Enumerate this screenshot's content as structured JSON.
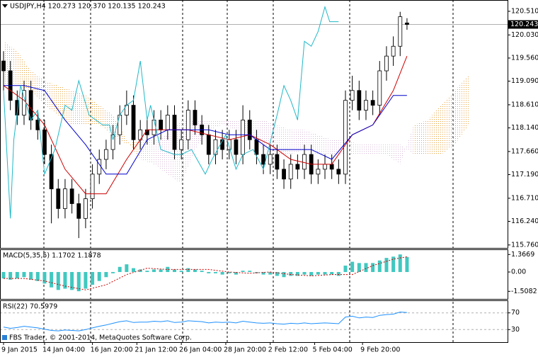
{
  "chart_data": [
    {
      "type": "candlestick",
      "title": "USDJPY,H4  120.273 120.370 120.135 120.243",
      "open": [
        119.5,
        119.3,
        118.7,
        118.4,
        118.9,
        118.3,
        118.1,
        117.6,
        116.9,
        116.5,
        116.9,
        116.6,
        116.3,
        116.7,
        117.2,
        117.5,
        117.7,
        118.0,
        118.4,
        118.6,
        117.9,
        118.1,
        118.0,
        118.3,
        118.1,
        118.4,
        117.7,
        117.9,
        118.5,
        118.2,
        118.0,
        117.6,
        117.9,
        117.7,
        117.9,
        117.6,
        118.3,
        117.9,
        117.6,
        117.4,
        117.6,
        117.3,
        117.1,
        117.4,
        117.3,
        117.6,
        117.2,
        117.3,
        117.4,
        117.3,
        117.2,
        118.7,
        118.9,
        118.5,
        118.7,
        118.6,
        119.3,
        119.6,
        119.8,
        120.273
      ],
      "high": [
        119.7,
        119.5,
        118.9,
        119.1,
        119.1,
        118.5,
        118.3,
        117.8,
        117.1,
        117.1,
        117.1,
        116.8,
        116.9,
        117.4,
        117.7,
        117.9,
        118.2,
        118.6,
        118.9,
        118.8,
        118.3,
        118.3,
        118.5,
        118.5,
        118.6,
        118.6,
        118.1,
        118.7,
        118.7,
        118.4,
        118.2,
        118.1,
        118.1,
        118.1,
        118.1,
        118.6,
        118.5,
        118.1,
        117.8,
        117.8,
        117.8,
        117.5,
        117.6,
        117.6,
        117.8,
        117.8,
        117.5,
        117.6,
        117.6,
        117.5,
        118.9,
        119.2,
        119.1,
        118.9,
        118.9,
        119.5,
        119.8,
        120.0,
        120.5,
        120.37
      ],
      "low": [
        118.9,
        118.5,
        118.2,
        118.2,
        118.1,
        117.9,
        117.4,
        116.2,
        116.3,
        116.3,
        116.4,
        115.9,
        116.1,
        116.5,
        117.0,
        117.3,
        117.5,
        117.8,
        118.2,
        117.7,
        117.7,
        117.8,
        117.8,
        117.9,
        117.9,
        117.5,
        117.5,
        117.7,
        118.0,
        117.8,
        117.4,
        117.4,
        117.5,
        117.5,
        117.4,
        117.4,
        117.7,
        117.4,
        117.2,
        117.2,
        117.1,
        116.9,
        116.9,
        117.1,
        117.1,
        117.0,
        117.0,
        117.1,
        117.1,
        117.0,
        117.0,
        118.5,
        118.3,
        118.3,
        118.4,
        118.4,
        119.1,
        119.4,
        119.6,
        120.135
      ],
      "close": [
        119.3,
        118.7,
        118.4,
        118.9,
        118.3,
        118.1,
        117.6,
        116.9,
        116.5,
        116.9,
        116.6,
        116.3,
        116.7,
        117.2,
        117.5,
        117.7,
        118.0,
        118.4,
        118.6,
        117.9,
        118.1,
        118.0,
        118.3,
        118.1,
        118.4,
        117.7,
        117.9,
        118.5,
        118.2,
        118.0,
        117.6,
        117.9,
        117.7,
        117.9,
        117.6,
        118.3,
        117.9,
        117.6,
        117.4,
        117.6,
        117.3,
        117.1,
        117.4,
        117.3,
        117.6,
        117.2,
        117.3,
        117.4,
        117.3,
        117.2,
        118.7,
        118.9,
        118.5,
        118.7,
        118.6,
        119.3,
        119.6,
        119.8,
        120.4,
        120.243
      ],
      "bull_color": "#ffffff",
      "bear_color": "#000000",
      "last_price": 120.243,
      "lines": [
        {
          "color": "#cc0000",
          "x": [
            0,
            3,
            6,
            9,
            12,
            15,
            18,
            21,
            24,
            27,
            30,
            33,
            36,
            39,
            42,
            45,
            48,
            51,
            54,
            57,
            59
          ],
          "values": [
            119.0,
            118.7,
            118.2,
            117.3,
            116.8,
            116.8,
            117.5,
            118.1,
            118.1,
            118.1,
            118.0,
            117.9,
            118.0,
            117.8,
            117.5,
            117.4,
            117.4,
            118.0,
            118.2,
            118.9,
            119.6
          ]
        },
        {
          "color": "#0000cc",
          "x": [
            0,
            3,
            6,
            9,
            12,
            15,
            18,
            21,
            24,
            27,
            30,
            33,
            36,
            39,
            42,
            45,
            48,
            51,
            54,
            57,
            59
          ],
          "values": [
            119.0,
            119.0,
            118.9,
            118.3,
            117.8,
            117.2,
            117.2,
            117.9,
            118.1,
            118.1,
            118.1,
            118.0,
            118.0,
            117.7,
            117.7,
            117.7,
            117.5,
            118.0,
            118.2,
            118.8,
            118.8
          ]
        },
        {
          "color": "#20b8c8",
          "x": [
            0,
            1,
            1.5,
            2.5,
            4,
            5,
            6,
            7.5,
            9,
            10,
            11,
            12.5,
            14.5,
            15.5,
            16,
            17,
            18,
            19,
            20,
            21,
            21.5,
            23,
            25,
            26,
            27.5,
            29.5,
            30.5,
            32.5,
            34,
            35,
            36.5,
            38,
            40,
            41,
            42,
            43,
            44,
            45,
            46,
            47,
            47.7,
            49
          ],
          "values": [
            118.9,
            116.3,
            117.9,
            119.0,
            118.3,
            118.5,
            117.2,
            117.7,
            118.6,
            118.5,
            119.1,
            118.4,
            118.2,
            118.2,
            117.9,
            118.4,
            118.6,
            118.7,
            119.5,
            118.3,
            118.6,
            117.7,
            117.6,
            117.6,
            117.7,
            117.2,
            117.5,
            118.0,
            117.3,
            117.6,
            117.7,
            117.3,
            118.4,
            119.0,
            118.7,
            118.3,
            119.9,
            119.8,
            120.1,
            120.6,
            120.3,
            120.3
          ]
        }
      ],
      "cloud": {
        "up_color": "#e8a040",
        "down_color": "#d8b8d8",
        "x": [
          0,
          2,
          4,
          6,
          8,
          10,
          12,
          14,
          16,
          18,
          20,
          22,
          24,
          26,
          28,
          30,
          32,
          34,
          36,
          38,
          40,
          42,
          44,
          46,
          48,
          50,
          52,
          54,
          56,
          58,
          60,
          62,
          64,
          66,
          68
        ],
        "span_a": [
          119.9,
          119.7,
          119.3,
          119.1,
          119.0,
          118.9,
          118.8,
          118.6,
          118.4,
          117.9,
          117.5,
          117.4,
          117.2,
          117.0,
          117.7,
          118.1,
          118.2,
          118.1,
          118.0,
          117.7,
          117.6,
          117.6,
          117.7,
          117.6,
          117.6,
          117.6,
          117.6,
          117.6,
          117.6,
          117.4,
          118.2,
          118.3,
          118.6,
          118.9,
          119.2
        ],
        "span_b": [
          119.0,
          119.0,
          118.9,
          118.6,
          118.4,
          118.2,
          118.2,
          118.2,
          118.0,
          117.8,
          117.9,
          117.9,
          118.0,
          118.3,
          118.3,
          118.3,
          118.3,
          118.3,
          118.3,
          118.3,
          118.2,
          118.1,
          118.1,
          118.0,
          117.9,
          117.9,
          117.8,
          117.8,
          117.8,
          117.8,
          117.6,
          117.6,
          117.6,
          117.8,
          118.2
        ]
      },
      "ylim": [
        115.7,
        120.74
      ],
      "yticks": [
        {
          "value": 120.51,
          "label": "120.510"
        },
        {
          "value": 120.03,
          "label": "120.030"
        },
        {
          "value": 119.56,
          "label": "119.560"
        },
        {
          "value": 119.09,
          "label": "119.090"
        },
        {
          "value": 118.61,
          "label": "118.610"
        },
        {
          "value": 118.14,
          "label": "118.140"
        },
        {
          "value": 117.66,
          "label": "117.660"
        },
        {
          "value": 117.19,
          "label": "117.190"
        },
        {
          "value": 116.71,
          "label": "116.710"
        },
        {
          "value": 116.24,
          "label": "116.240"
        },
        {
          "value": 115.76,
          "label": "115.760"
        }
      ],
      "xticks": [
        {
          "value": 0,
          "label": "9 Jan 2015"
        },
        {
          "value": 6,
          "label": "14 Jan 04:00"
        },
        {
          "value": 13,
          "label": "16 Jan 20:00"
        },
        {
          "value": 19.5,
          "label": "21 Jan 12:00"
        },
        {
          "value": 26,
          "label": "26 Jan 04:00"
        },
        {
          "value": 32.5,
          "label": "28 Jan 20:00"
        },
        {
          "value": 39,
          "label": "2 Feb 12:00"
        },
        {
          "value": 45.5,
          "label": "5 Feb 04:00"
        },
        {
          "value": 52.5,
          "label": "9 Feb 20:00"
        }
      ]
    },
    {
      "type": "bar",
      "title": "MACD(5,35,5) 1.1702 1.1878",
      "color": "#40c8c0",
      "values": [
        -0.5,
        -0.6,
        -0.5,
        -0.4,
        -0.6,
        -0.7,
        -0.9,
        -1.2,
        -1.4,
        -1.3,
        -1.4,
        -1.5,
        -1.3,
        -1.0,
        -0.7,
        -0.4,
        -0.1,
        0.4,
        0.6,
        0.3,
        0.2,
        0.1,
        0.2,
        0.2,
        0.4,
        0.2,
        0.1,
        0.3,
        0.2,
        0.1,
        -0.1,
        -0.1,
        -0.2,
        -0.1,
        -0.2,
        0.1,
        0.1,
        -0.1,
        -0.2,
        -0.2,
        -0.3,
        -0.4,
        -0.3,
        -0.3,
        -0.2,
        -0.3,
        -0.2,
        -0.2,
        -0.2,
        -0.3,
        0.5,
        0.8,
        0.7,
        0.7,
        0.7,
        0.9,
        1.1,
        1.2,
        1.37,
        1.1702
      ],
      "signal": {
        "color": "#cc0000",
        "x": [
          0,
          3,
          6,
          9,
          12,
          15,
          18,
          21,
          24,
          27,
          30,
          33,
          36,
          39,
          42,
          45,
          48,
          51,
          54,
          57,
          59
        ],
        "values": [
          -0.5,
          -0.5,
          -0.7,
          -1.1,
          -1.4,
          -1.0,
          -0.2,
          0.3,
          0.2,
          0.2,
          0.2,
          0.0,
          -0.1,
          0.0,
          -0.2,
          -0.3,
          -0.2,
          -0.2,
          0.5,
          1.0,
          1.1878
        ]
      },
      "ylim": [
        -2.1,
        1.77
      ],
      "yticks": [
        1.3669,
        {
          "value": 0,
          "label": "0.00"
        },
        -1.5082
      ]
    },
    {
      "type": "line",
      "title": "RSI(22) 70.5979",
      "color": "#1e90ff",
      "values": [
        36,
        33,
        35,
        38,
        36,
        34,
        31,
        28,
        27,
        29,
        28,
        27,
        30,
        34,
        38,
        41,
        45,
        49,
        51,
        47,
        48,
        48,
        50,
        49,
        51,
        47,
        48,
        51,
        50,
        49,
        46,
        48,
        47,
        48,
        46,
        50,
        48,
        46,
        45,
        46,
        44,
        43,
        45,
        44,
        46,
        44,
        45,
        46,
        45,
        44,
        60,
        62,
        58,
        60,
        59,
        64,
        66,
        67,
        72,
        70.5979
      ],
      "ylim": [
        0,
        100
      ],
      "yticks": [
        70,
        30
      ],
      "grid": true
    }
  ],
  "footer": "FBS Trader, © 2001-2014, MetaQuotes Software Corp."
}
